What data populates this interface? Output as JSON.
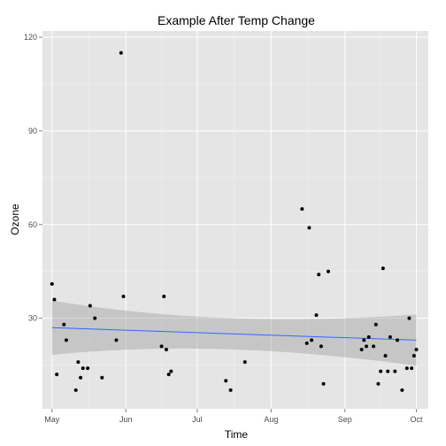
{
  "colors": {
    "panel_bg": "#e5e5e5",
    "grid_major": "#ffffff",
    "grid_minor": "#f2f2f2",
    "tick_text": "#4d4d4d",
    "point": "#000000",
    "smooth_line": "#3366ff",
    "ribbon": "#999999"
  },
  "chart_data": {
    "type": "scatter",
    "title": "Example After Temp Change",
    "xlabel": "Time",
    "ylabel": "Ozone",
    "grid": true,
    "x_ticks": [
      {
        "label": "May",
        "day": 0
      },
      {
        "label": "Jun",
        "day": 31
      },
      {
        "label": "Jul",
        "day": 61
      },
      {
        "label": "Aug",
        "day": 92
      },
      {
        "label": "Sep",
        "day": 123
      },
      {
        "label": "Oct",
        "day": 153
      }
    ],
    "y_ticks": [
      30,
      60,
      90,
      120
    ],
    "xlim": [
      -4,
      158
    ],
    "ylim": [
      1,
      122
    ],
    "x_units": "day of year offset from May 1",
    "points": [
      {
        "x": 0,
        "y": 41
      },
      {
        "x": 1,
        "y": 36
      },
      {
        "x": 2,
        "y": 12
      },
      {
        "x": 5,
        "y": 28
      },
      {
        "x": 6,
        "y": 23
      },
      {
        "x": 10,
        "y": 7
      },
      {
        "x": 11,
        "y": 16
      },
      {
        "x": 12,
        "y": 11
      },
      {
        "x": 13,
        "y": 14
      },
      {
        "x": 15,
        "y": 14
      },
      {
        "x": 16,
        "y": 34
      },
      {
        "x": 18,
        "y": 30
      },
      {
        "x": 21,
        "y": 11
      },
      {
        "x": 27,
        "y": 23
      },
      {
        "x": 29,
        "y": 115
      },
      {
        "x": 30,
        "y": 37
      },
      {
        "x": 46,
        "y": 21
      },
      {
        "x": 47,
        "y": 37
      },
      {
        "x": 48,
        "y": 20
      },
      {
        "x": 49,
        "y": 12
      },
      {
        "x": 50,
        "y": 13
      },
      {
        "x": 73,
        "y": 10
      },
      {
        "x": 75,
        "y": 7
      },
      {
        "x": 81,
        "y": 16
      },
      {
        "x": 105,
        "y": 65
      },
      {
        "x": 107,
        "y": 22
      },
      {
        "x": 108,
        "y": 59
      },
      {
        "x": 109,
        "y": 23
      },
      {
        "x": 111,
        "y": 31
      },
      {
        "x": 112,
        "y": 44
      },
      {
        "x": 113,
        "y": 21
      },
      {
        "x": 114,
        "y": 9
      },
      {
        "x": 116,
        "y": 45
      },
      {
        "x": 130,
        "y": 20
      },
      {
        "x": 131,
        "y": 23
      },
      {
        "x": 132,
        "y": 21
      },
      {
        "x": 133,
        "y": 24
      },
      {
        "x": 135,
        "y": 21
      },
      {
        "x": 136,
        "y": 28
      },
      {
        "x": 137,
        "y": 9
      },
      {
        "x": 138,
        "y": 13
      },
      {
        "x": 139,
        "y": 46
      },
      {
        "x": 140,
        "y": 18
      },
      {
        "x": 141,
        "y": 13
      },
      {
        "x": 142,
        "y": 24
      },
      {
        "x": 144,
        "y": 13
      },
      {
        "x": 145,
        "y": 23
      },
      {
        "x": 147,
        "y": 7
      },
      {
        "x": 149,
        "y": 14
      },
      {
        "x": 150,
        "y": 30
      },
      {
        "x": 151,
        "y": 14
      },
      {
        "x": 152,
        "y": 18
      },
      {
        "x": 153,
        "y": 20
      }
    ],
    "smooth_fit": {
      "x": [
        0,
        153
      ],
      "y": [
        27.0,
        23.0
      ],
      "ci_upper": [
        35.8,
        31.2
      ],
      "ci_lower": [
        18.2,
        14.8
      ],
      "ci_mid": [
        76,
        31.5,
        21.5
      ]
    }
  }
}
